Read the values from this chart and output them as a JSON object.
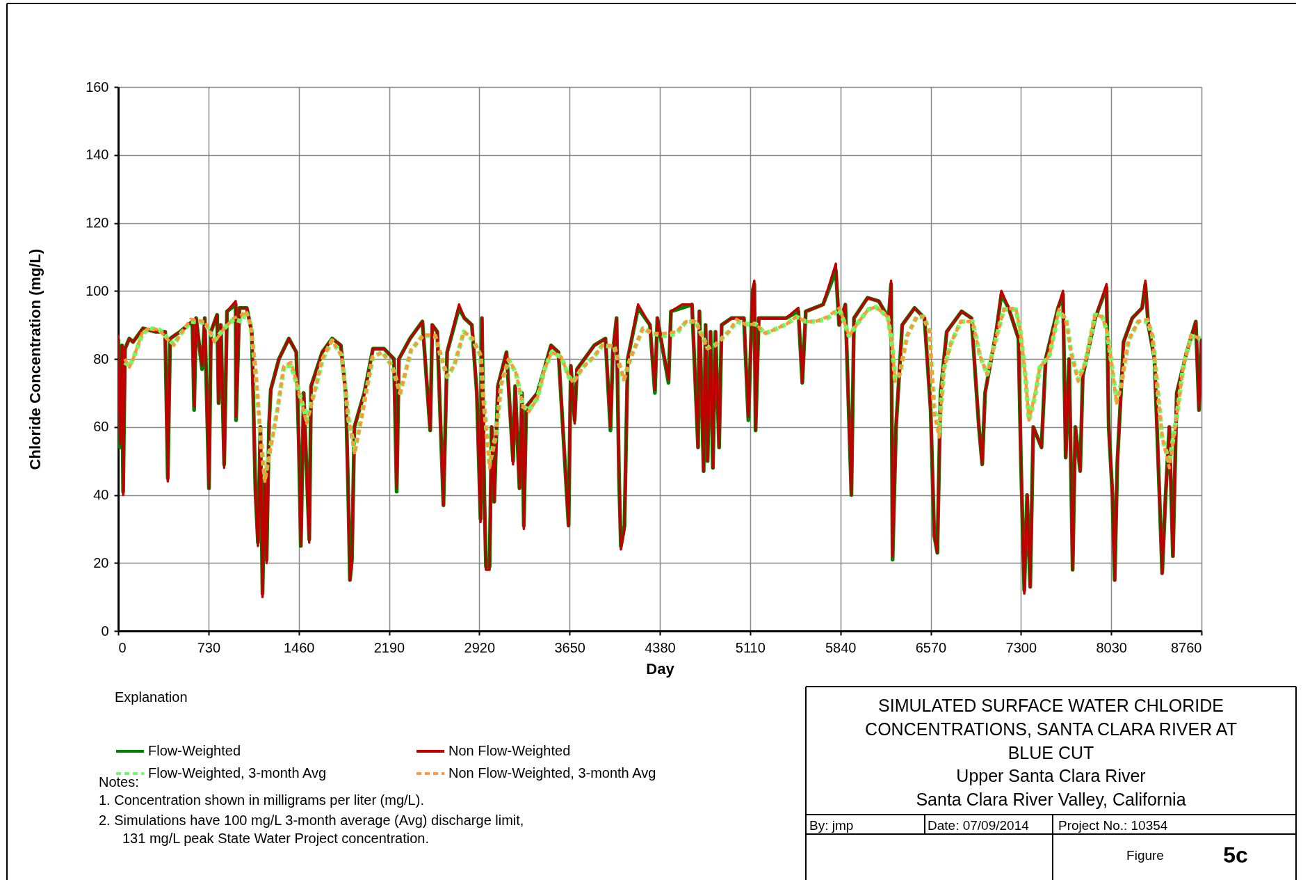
{
  "chart_data": {
    "type": "line",
    "title": "SIMULATED SURFACE WATER CHLORIDE CONCENTRATIONS, SANTA CLARA RIVER AT BLUE CUT",
    "subtitle": "Upper Santa Clara River\nSanta Clara River Valley, California",
    "xlabel": "Day",
    "ylabel": "Chloride Concentration (mg/L)",
    "legend_title": "Explanation",
    "xlim": [
      0,
      8760
    ],
    "xticks": [
      0,
      730,
      1460,
      2190,
      2920,
      3650,
      4380,
      5110,
      5840,
      6570,
      7300,
      8030,
      8760
    ],
    "ylim": [
      0,
      160
    ],
    "yticks": [
      0,
      20,
      40,
      60,
      80,
      100,
      120,
      140,
      160
    ],
    "grid": true,
    "legend": "bottom left",
    "marker": "none",
    "x": [
      0,
      15,
      30,
      40,
      55,
      90,
      120,
      200,
      300,
      380,
      401,
      420,
      500,
      600,
      614,
      630,
      678,
      700,
      734,
      750,
      800,
      812,
      830,
      857,
      880,
      950,
      953,
      980,
      1040,
      1080,
      1110,
      1130,
      1150,
      1167,
      1185,
      1200,
      1220,
      1234,
      1300,
      1380,
      1440,
      1460,
      1477,
      1500,
      1545,
      1560,
      1650,
      1730,
      1800,
      1840,
      1860,
      1874,
      1890,
      1910,
      1990,
      2060,
      2150,
      2230,
      2252,
      2270,
      2360,
      2460,
      2523,
      2540,
      2580,
      2630,
      2660,
      2756,
      2800,
      2860,
      2900,
      2930,
      2941,
      2960,
      2974,
      3003,
      3020,
      3041,
      3070,
      3140,
      3193,
      3210,
      3245,
      3265,
      3280,
      3300,
      3390,
      3500,
      3560,
      3642,
      3660,
      3691,
      3710,
      3850,
      3940,
      3981,
      4000,
      4030,
      4050,
      4065,
      4094,
      4120,
      4204,
      4300,
      4340,
      4360,
      4450,
      4470,
      4560,
      4640,
      4689,
      4700,
      4734,
      4750,
      4766,
      4790,
      4809,
      4830,
      4859,
      4880,
      4960,
      5060,
      5096,
      5130,
      5144,
      5154,
      5180,
      5300,
      5400,
      5500,
      5532,
      5560,
      5700,
      5803,
      5830,
      5880,
      5929,
      5950,
      6060,
      6150,
      6230,
      6250,
      6262,
      6290,
      6340,
      6440,
      6520,
      6570,
      6599,
      6624,
      6650,
      6700,
      6820,
      6900,
      6960,
      6987,
      7010,
      7100,
      7142,
      7200,
      7280,
      7300,
      7327,
      7350,
      7375,
      7400,
      7466,
      7500,
      7600,
      7640,
      7662,
      7690,
      7718,
      7740,
      7779,
      7800,
      7900,
      7992,
      8010,
      8040,
      8058,
      8080,
      8130,
      8200,
      8280,
      8306,
      8330,
      8380,
      8420,
      8442,
      8470,
      8500,
      8529,
      8560,
      8640,
      8690,
      8714,
      8740,
      8760
    ],
    "series": [
      {
        "name": "Flow-Weighted",
        "color": "#008000",
        "line_style": "solid",
        "values": [
          86,
          54,
          84,
          41,
          83,
          86,
          85,
          89,
          88,
          88,
          45,
          86,
          88,
          91,
          65,
          92,
          77,
          92,
          42,
          88,
          93,
          67,
          90,
          49,
          94,
          96,
          62,
          95,
          95,
          88,
          41,
          26,
          60,
          11,
          46,
          21,
          61,
          71,
          80,
          86,
          82,
          56,
          25,
          70,
          27,
          72,
          82,
          86,
          84,
          70,
          41,
          15,
          21,
          60,
          70,
          83,
          83,
          80,
          41,
          80,
          86,
          91,
          59,
          90,
          88,
          37,
          82,
          95,
          92,
          90,
          70,
          33,
          92,
          41,
          19,
          19,
          60,
          38,
          72,
          82,
          50,
          72,
          42,
          70,
          31,
          66,
          70,
          84,
          82,
          31,
          78,
          62,
          77,
          84,
          86,
          59,
          82,
          92,
          45,
          25,
          31,
          80,
          95,
          90,
          70,
          92,
          73,
          94,
          95,
          96,
          54,
          94,
          47,
          90,
          50,
          88,
          48,
          88,
          54,
          90,
          92,
          92,
          62,
          100,
          102,
          59,
          92,
          92,
          92,
          94,
          73,
          94,
          96,
          106,
          90,
          96,
          40,
          92,
          98,
          97,
          92,
          102,
          21,
          60,
          90,
          95,
          92,
          65,
          28,
          23,
          70,
          88,
          94,
          92,
          60,
          49,
          70,
          88,
          99,
          95,
          86,
          50,
          12,
          40,
          13,
          60,
          54,
          80,
          95,
          99,
          51,
          80,
          18,
          60,
          47,
          75,
          92,
          101,
          60,
          40,
          15,
          50,
          85,
          92,
          95,
          102,
          90,
          80,
          40,
          17,
          40,
          60,
          22,
          70,
          82,
          88,
          91,
          65,
          86
        ]
      },
      {
        "name": "Non Flow-Weighted",
        "color": "#c00000",
        "line_style": "solid",
        "values": [
          87,
          55,
          84,
          40,
          83,
          86,
          85,
          89,
          88,
          88,
          44,
          86,
          88,
          91,
          66,
          92,
          78,
          92,
          42,
          88,
          93,
          67,
          90,
          48,
          94,
          97,
          63,
          95,
          95,
          87,
          40,
          25,
          60,
          10,
          45,
          20,
          60,
          71,
          80,
          86,
          82,
          55,
          25,
          70,
          26,
          72,
          82,
          86,
          84,
          70,
          40,
          15,
          20,
          60,
          70,
          83,
          83,
          80,
          42,
          80,
          86,
          91,
          59,
          90,
          88,
          37,
          82,
          96,
          92,
          90,
          70,
          32,
          92,
          40,
          18,
          18,
          60,
          38,
          72,
          82,
          49,
          72,
          42,
          70,
          30,
          66,
          70,
          84,
          82,
          31,
          78,
          61,
          77,
          84,
          86,
          60,
          82,
          92,
          45,
          24,
          30,
          80,
          96,
          90,
          71,
          92,
          74,
          94,
          96,
          96,
          54,
          94,
          47,
          90,
          50,
          88,
          48,
          88,
          54,
          90,
          92,
          92,
          63,
          100,
          103,
          59,
          92,
          92,
          92,
          95,
          73,
          94,
          96,
          108,
          90,
          96,
          40,
          92,
          98,
          97,
          92,
          103,
          22,
          60,
          90,
          95,
          92,
          65,
          28,
          23,
          70,
          88,
          94,
          92,
          60,
          49,
          70,
          88,
          100,
          95,
          86,
          50,
          11,
          40,
          13,
          60,
          54,
          80,
          95,
          100,
          51,
          80,
          18,
          60,
          47,
          75,
          92,
          102,
          60,
          40,
          15,
          50,
          85,
          92,
          95,
          103,
          90,
          80,
          40,
          17,
          40,
          60,
          22,
          70,
          82,
          88,
          91,
          65,
          86
        ]
      },
      {
        "name": "Flow-Weighted, 3-month Avg",
        "color": "#66ff66",
        "line_style": "dashed",
        "x": [
          52,
          91,
          120,
          198,
          256,
          333,
          391,
          450,
          508,
          585,
          702,
          779,
          857,
          934,
          1002,
          1031,
          1070,
          1109,
          1147,
          1186,
          1225,
          1283,
          1341,
          1399,
          1457,
          1525,
          1593,
          1651,
          1729,
          1806,
          1864,
          1913,
          1981,
          2058,
          2136,
          2213,
          2281,
          2368,
          2465,
          2562,
          2659,
          2717,
          2795,
          2872,
          2930,
          2954,
          3003,
          3051,
          3100,
          3158,
          3216,
          3274,
          3322,
          3390,
          3448,
          3506,
          3584,
          3642,
          3681,
          3759,
          3855,
          3914,
          4011,
          4088,
          4146,
          4243,
          4321,
          4418,
          4515,
          4592,
          4670,
          4767,
          4825,
          4942,
          5000,
          5077,
          5154,
          5232,
          5329,
          5406,
          5484,
          5561,
          5639,
          5736,
          5833,
          5910,
          5989,
          6067,
          6126,
          6223,
          6262,
          6282,
          6321,
          6380,
          6457,
          6515,
          6560,
          6580,
          6599,
          6638,
          6677,
          6735,
          6813,
          6910,
          6968,
          7027,
          7084,
          7162,
          7259,
          7298,
          7336,
          7365,
          7414,
          7453,
          7530,
          7608,
          7666,
          7705,
          7763,
          7821,
          7899,
          7957,
          7996,
          8034,
          8073,
          8112,
          8170,
          8248,
          8325,
          8364,
          8403,
          8442,
          8500,
          8558,
          8616,
          8675,
          8752
        ],
        "values": [
          79,
          78,
          80,
          87.5,
          89,
          88.6,
          86.4,
          84.3,
          87.5,
          91,
          90.7,
          85.4,
          89,
          91.7,
          91,
          94,
          90.3,
          77,
          58.6,
          45,
          53,
          64,
          78,
          78,
          71,
          62,
          71,
          79.7,
          85.4,
          81,
          62,
          53,
          65.6,
          80.5,
          82,
          78,
          70,
          82.6,
          87,
          86.8,
          74.8,
          78,
          88,
          85.4,
          81,
          68.5,
          49.4,
          57,
          73,
          79.7,
          76,
          66,
          65,
          68.5,
          77,
          82,
          80.5,
          74.8,
          73.4,
          77.6,
          81,
          84,
          83.6,
          74,
          80.5,
          89,
          87.5,
          86.8,
          87.5,
          91,
          91,
          83.3,
          84,
          88.2,
          91,
          90.3,
          90.3,
          87.5,
          89,
          90.3,
          92.4,
          91,
          91,
          92,
          94.6,
          86.8,
          91,
          94.6,
          95.3,
          92.4,
          83.3,
          74,
          75.5,
          86.8,
          92.4,
          92.4,
          88.2,
          76,
          65.6,
          58.6,
          77,
          84.7,
          91,
          91,
          81,
          75.5,
          84,
          94.6,
          94.6,
          87.5,
          74.8,
          62,
          69,
          77.6,
          81,
          94,
          91.7,
          82,
          74,
          79,
          93,
          92.4,
          88.2,
          78.3,
          67.7,
          72.7,
          85.4,
          91,
          91,
          86.8,
          72,
          57,
          49.4,
          62.8,
          78.3,
          86.8,
          86
        ]
      },
      {
        "name": "Non Flow-Weighted, 3-month Avg",
        "color": "#ff9933",
        "line_style": "dashed",
        "x": [
          52,
          91,
          120,
          198,
          256,
          333,
          391,
          450,
          508,
          585,
          702,
          779,
          857,
          934,
          1002,
          1031,
          1070,
          1109,
          1147,
          1186,
          1225,
          1283,
          1341,
          1399,
          1457,
          1525,
          1593,
          1651,
          1729,
          1806,
          1864,
          1913,
          1981,
          2058,
          2136,
          2213,
          2281,
          2368,
          2465,
          2562,
          2659,
          2717,
          2795,
          2872,
          2930,
          2954,
          3003,
          3051,
          3100,
          3158,
          3216,
          3274,
          3322,
          3390,
          3448,
          3506,
          3584,
          3642,
          3681,
          3759,
          3855,
          3914,
          4011,
          4088,
          4146,
          4243,
          4321,
          4418,
          4515,
          4592,
          4670,
          4767,
          4825,
          4942,
          5000,
          5077,
          5154,
          5232,
          5329,
          5406,
          5484,
          5561,
          5639,
          5736,
          5833,
          5910,
          5989,
          6067,
          6126,
          6223,
          6262,
          6282,
          6321,
          6380,
          6457,
          6515,
          6560,
          6580,
          6599,
          6638,
          6677,
          6735,
          6813,
          6910,
          6968,
          7027,
          7084,
          7162,
          7259,
          7298,
          7336,
          7365,
          7414,
          7453,
          7530,
          7608,
          7666,
          7705,
          7763,
          7821,
          7899,
          7957,
          7996,
          8034,
          8073,
          8112,
          8170,
          8248,
          8325,
          8364,
          8403,
          8442,
          8500,
          8558,
          8616,
          8675,
          8752
        ],
        "values": [
          80,
          77.6,
          80,
          88,
          89,
          88.6,
          86,
          84,
          87.5,
          91.7,
          91,
          85,
          89,
          92,
          93,
          94.2,
          90.3,
          78,
          60,
          44,
          52,
          64,
          78,
          79,
          71,
          61,
          71,
          80,
          85.4,
          81,
          62,
          52,
          65,
          80.5,
          82,
          78,
          70,
          82.6,
          87,
          87,
          75,
          78,
          88,
          86,
          81,
          68,
          48,
          57,
          73,
          80,
          76,
          66,
          64.5,
          68.5,
          77,
          82,
          80.5,
          75,
          73,
          77.6,
          81,
          84,
          84,
          74,
          80.5,
          89,
          87.5,
          87.5,
          88,
          91,
          91,
          83,
          84,
          88.2,
          91.7,
          90,
          90.3,
          87.5,
          89,
          90.3,
          92.4,
          91,
          91,
          92.4,
          95,
          86.8,
          91,
          94.6,
          95.3,
          92.4,
          83.3,
          73.4,
          75.5,
          86.8,
          92.4,
          92.4,
          88.2,
          76,
          64,
          57,
          77,
          84.7,
          91,
          91,
          81,
          75.5,
          84,
          94.6,
          95,
          87.5,
          74.8,
          62,
          69.7,
          77.6,
          81,
          94.6,
          91.7,
          82,
          73.4,
          79,
          93,
          92.4,
          88.2,
          78.3,
          67,
          72,
          85.4,
          91,
          91.7,
          86.8,
          72,
          57,
          48,
          62.8,
          78.3,
          87,
          86
        ]
      }
    ],
    "annotations": [
      "By: jmp",
      "Date: 07/09/2014",
      "Project No.: 10354",
      "Figure",
      "5c",
      "Notes:",
      "1.  Concentration shown in milligrams per liter (mg/L).",
      "2.  Simulations have 100 mg/L 3-month average (Avg) discharge limit,",
      "131 mg/L peak State Water Project concentration."
    ]
  }
}
